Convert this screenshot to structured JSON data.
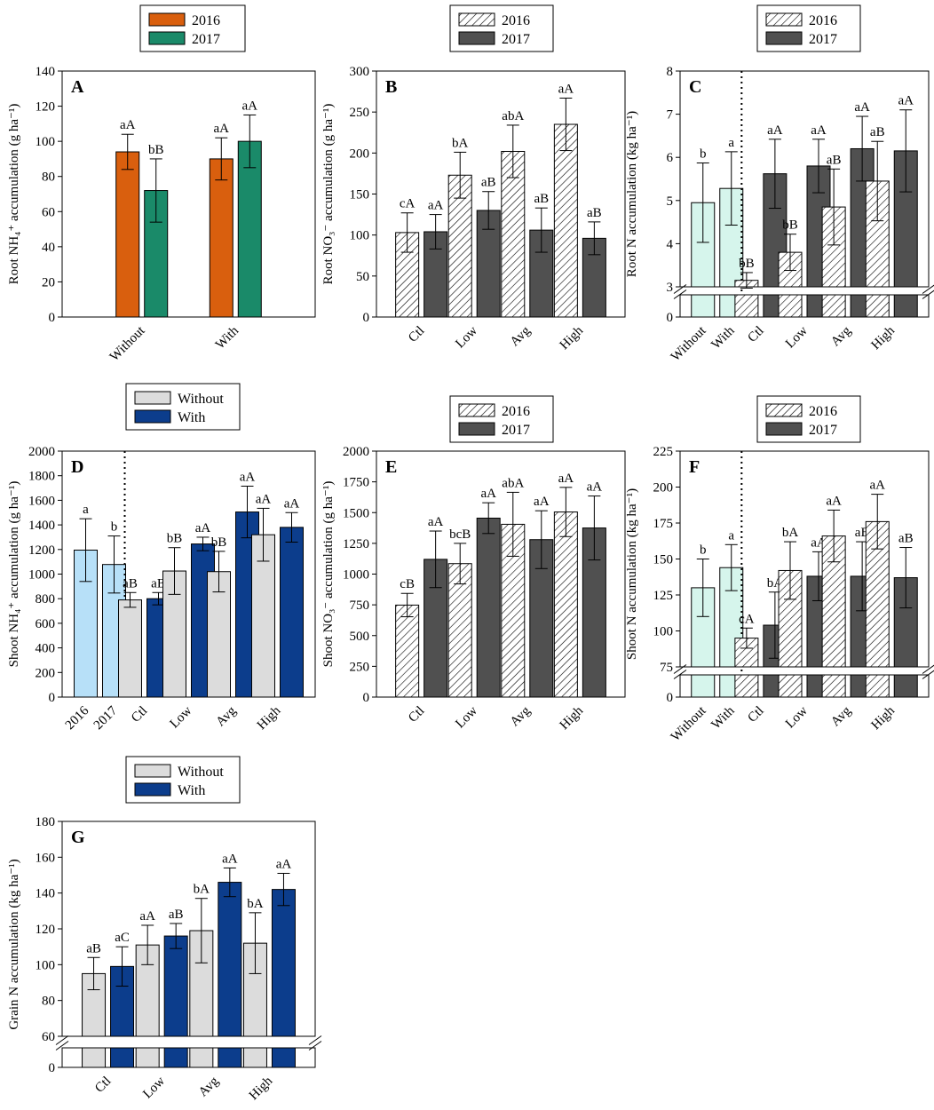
{
  "colors": {
    "orange": "#D95F0E",
    "teal": "#1A8A69",
    "dark_gray": "#505050",
    "light_gray": "#DCDCDC",
    "navy": "#0C3D8C",
    "light_blue": "#B7E0F8",
    "mint": "#D6F5EC"
  },
  "chart_data": [
    {
      "panel": "A",
      "type": "bar",
      "ylabel": "Root NH₄⁺ accumulation (g ha⁻¹)",
      "ylim": [
        0,
        140
      ],
      "yticks": [
        0,
        20,
        40,
        60,
        80,
        100,
        120,
        140
      ],
      "legend": [
        {
          "label": "2016",
          "style": "orange"
        },
        {
          "label": "2017",
          "style": "teal"
        }
      ],
      "groups": [
        {
          "label": "Without",
          "bars": [
            {
              "series": "2016",
              "value": 94,
              "error": 10,
              "letter": "aA",
              "style": "orange"
            },
            {
              "series": "2017",
              "value": 72,
              "error": 18,
              "letter": "bB",
              "style": "teal"
            }
          ]
        },
        {
          "label": "With",
          "bars": [
            {
              "series": "2016",
              "value": 90,
              "error": 12,
              "letter": "aA",
              "style": "orange"
            },
            {
              "series": "2017",
              "value": 100,
              "error": 15,
              "letter": "aA",
              "style": "teal"
            }
          ]
        }
      ]
    },
    {
      "panel": "B",
      "type": "bar",
      "ylabel": "Root NO₃⁻ accumulation (g ha⁻¹)",
      "ylim": [
        0,
        300
      ],
      "yticks": [
        0,
        50,
        100,
        150,
        200,
        250,
        300
      ],
      "legend": [
        {
          "label": "2016",
          "style": "hatch"
        },
        {
          "label": "2017",
          "style": "dark"
        }
      ],
      "groups": [
        {
          "label": "Ctl",
          "bars": [
            {
              "series": "2016",
              "value": 103,
              "error": 24,
              "letter": "cA",
              "style": "hatch"
            },
            {
              "series": "2017",
              "value": 104,
              "error": 21,
              "letter": "aA",
              "style": "dark"
            }
          ]
        },
        {
          "label": "Low",
          "bars": [
            {
              "series": "2016",
              "value": 173,
              "error": 28,
              "letter": "bA",
              "style": "hatch"
            },
            {
              "series": "2017",
              "value": 130,
              "error": 23,
              "letter": "aB",
              "style": "dark"
            }
          ]
        },
        {
          "label": "Avg",
          "bars": [
            {
              "series": "2016",
              "value": 202,
              "error": 32,
              "letter": "abA",
              "style": "hatch"
            },
            {
              "series": "2017",
              "value": 106,
              "error": 27,
              "letter": "aB",
              "style": "dark"
            }
          ]
        },
        {
          "label": "High",
          "bars": [
            {
              "series": "2016",
              "value": 235,
              "error": 32,
              "letter": "aA",
              "style": "hatch"
            },
            {
              "series": "2017",
              "value": 96,
              "error": 20,
              "letter": "aB",
              "style": "dark"
            }
          ]
        }
      ]
    },
    {
      "panel": "C",
      "type": "bar",
      "broken_axis": true,
      "ylabel": "Root N accumulation (kg ha⁻¹)",
      "ylim": [
        3,
        8
      ],
      "yticks": [
        3,
        4,
        5,
        6,
        7,
        8
      ],
      "ytick_zero": 0,
      "legend": [
        {
          "label": "2016",
          "style": "hatch"
        },
        {
          "label": "2017",
          "style": "dark"
        }
      ],
      "split_after_group": 0,
      "groups": [
        {
          "label": "",
          "bars": [
            {
              "series": "Without",
              "label": "Without",
              "value": 4.95,
              "error": 0.92,
              "letter": "b",
              "style": "mint"
            },
            {
              "series": "With",
              "label": "With",
              "value": 5.28,
              "error": 0.85,
              "letter": "a",
              "style": "mint"
            }
          ]
        },
        {
          "label": "Ctl",
          "bars": [
            {
              "series": "2016",
              "value": 3.15,
              "error": 0.18,
              "letter": "bB",
              "style": "hatch"
            },
            {
              "series": "2017",
              "value": 5.62,
              "error": 0.8,
              "letter": "aA",
              "style": "dark"
            }
          ]
        },
        {
          "label": "Low",
          "bars": [
            {
              "series": "2016",
              "value": 3.8,
              "error": 0.42,
              "letter": "bB",
              "style": "hatch"
            },
            {
              "series": "2017",
              "value": 5.8,
              "error": 0.62,
              "letter": "aA",
              "style": "dark"
            }
          ]
        },
        {
          "label": "Avg",
          "bars": [
            {
              "series": "2016",
              "value": 4.85,
              "error": 0.88,
              "letter": "aB",
              "style": "hatch"
            },
            {
              "series": "2017",
              "value": 6.2,
              "error": 0.75,
              "letter": "aA",
              "style": "dark"
            }
          ]
        },
        {
          "label": "High",
          "bars": [
            {
              "series": "2016",
              "value": 5.45,
              "error": 0.92,
              "letter": "aB",
              "style": "hatch"
            },
            {
              "series": "2017",
              "value": 6.15,
              "error": 0.95,
              "letter": "aA",
              "style": "dark"
            }
          ]
        }
      ]
    },
    {
      "panel": "D",
      "type": "bar",
      "ylabel": "Shoot NH₄⁺ accumulation (g ha⁻¹)",
      "ylim": [
        0,
        2000
      ],
      "yticks": [
        0,
        200,
        400,
        600,
        800,
        1000,
        1200,
        1400,
        1600,
        1800,
        2000
      ],
      "legend": [
        {
          "label": "Without",
          "style": "light"
        },
        {
          "label": "With",
          "style": "navy"
        }
      ],
      "split_after_group": 0,
      "groups": [
        {
          "label": "",
          "bars": [
            {
              "series": "2016",
              "label": "2016",
              "value": 1195,
              "error": 255,
              "letter": "a",
              "style": "lightblue"
            },
            {
              "series": "2017",
              "label": "2017",
              "value": 1078,
              "error": 232,
              "letter": "b",
              "style": "lightblue"
            }
          ]
        },
        {
          "label": "Ctl",
          "bars": [
            {
              "series": "Without",
              "value": 790,
              "error": 60,
              "letter": "aB",
              "style": "light"
            },
            {
              "series": "With",
              "value": 800,
              "error": 50,
              "letter": "aB",
              "style": "navy"
            }
          ]
        },
        {
          "label": "Low",
          "bars": [
            {
              "series": "Without",
              "value": 1025,
              "error": 190,
              "letter": "bB",
              "style": "light"
            },
            {
              "series": "With",
              "value": 1245,
              "error": 55,
              "letter": "aA",
              "style": "navy"
            }
          ]
        },
        {
          "label": "Avg",
          "bars": [
            {
              "series": "Without",
              "value": 1020,
              "error": 165,
              "letter": "bB",
              "style": "light"
            },
            {
              "series": "With",
              "value": 1505,
              "error": 210,
              "letter": "aA",
              "style": "navy"
            }
          ]
        },
        {
          "label": "High",
          "bars": [
            {
              "series": "Without",
              "value": 1320,
              "error": 215,
              "letter": "aA",
              "style": "light"
            },
            {
              "series": "With",
              "value": 1380,
              "error": 120,
              "letter": "aA",
              "style": "navy"
            }
          ]
        }
      ]
    },
    {
      "panel": "E",
      "type": "bar",
      "ylabel": "Shoot NO₃⁻ accumulation (g ha⁻¹)",
      "ylim": [
        0,
        2000
      ],
      "yticks": [
        0,
        250,
        500,
        750,
        1000,
        1250,
        1500,
        1750,
        2000
      ],
      "legend": [
        {
          "label": "2016",
          "style": "hatch"
        },
        {
          "label": "2017",
          "style": "dark"
        }
      ],
      "groups": [
        {
          "label": "Ctl",
          "bars": [
            {
              "series": "2016",
              "value": 748,
              "error": 95,
              "letter": "cB",
              "style": "hatch"
            },
            {
              "series": "2017",
              "value": 1120,
              "error": 230,
              "letter": "aA",
              "style": "dark"
            }
          ]
        },
        {
          "label": "Low",
          "bars": [
            {
              "series": "2016",
              "value": 1085,
              "error": 165,
              "letter": "bcB",
              "style": "hatch"
            },
            {
              "series": "2017",
              "value": 1455,
              "error": 125,
              "letter": "aA",
              "style": "dark"
            }
          ]
        },
        {
          "label": "Avg",
          "bars": [
            {
              "series": "2016",
              "value": 1405,
              "error": 260,
              "letter": "abA",
              "style": "hatch"
            },
            {
              "series": "2017",
              "value": 1280,
              "error": 235,
              "letter": "aA",
              "style": "dark"
            }
          ]
        },
        {
          "label": "High",
          "bars": [
            {
              "series": "2016",
              "value": 1505,
              "error": 200,
              "letter": "aA",
              "style": "hatch"
            },
            {
              "series": "2017",
              "value": 1375,
              "error": 260,
              "letter": "aA",
              "style": "dark"
            }
          ]
        }
      ]
    },
    {
      "panel": "F",
      "type": "bar",
      "broken_axis": true,
      "ylabel": "Shoot N accumulation (kg ha⁻¹)",
      "ylim": [
        75,
        225
      ],
      "yticks": [
        75,
        100,
        125,
        150,
        175,
        200,
        225
      ],
      "ytick_zero": 0,
      "legend": [
        {
          "label": "2016",
          "style": "hatch"
        },
        {
          "label": "2017",
          "style": "dark"
        }
      ],
      "split_after_group": 0,
      "groups": [
        {
          "label": "",
          "bars": [
            {
              "series": "Without",
              "label": "Without",
              "value": 130,
              "error": 20,
              "letter": "b",
              "style": "mint"
            },
            {
              "series": "With",
              "label": "With",
              "value": 144,
              "error": 16,
              "letter": "a",
              "style": "mint"
            }
          ]
        },
        {
          "label": "Ctl",
          "bars": [
            {
              "series": "2016",
              "value": 95,
              "error": 7,
              "letter": "cA",
              "style": "hatch"
            },
            {
              "series": "2017",
              "value": 104,
              "error": 23,
              "letter": "bA",
              "style": "dark"
            }
          ]
        },
        {
          "label": "Low",
          "bars": [
            {
              "series": "2016",
              "value": 142,
              "error": 20,
              "letter": "bA",
              "style": "hatch"
            },
            {
              "series": "2017",
              "value": 138,
              "error": 17,
              "letter": "aA",
              "style": "dark"
            }
          ]
        },
        {
          "label": "Avg",
          "bars": [
            {
              "series": "2016",
              "value": 166,
              "error": 18,
              "letter": "aA",
              "style": "hatch"
            },
            {
              "series": "2017",
              "value": 138,
              "error": 24,
              "letter": "aB",
              "style": "dark"
            }
          ]
        },
        {
          "label": "High",
          "bars": [
            {
              "series": "2016",
              "value": 176,
              "error": 19,
              "letter": "aA",
              "style": "hatch"
            },
            {
              "series": "2017",
              "value": 137,
              "error": 21,
              "letter": "aB",
              "style": "dark"
            }
          ]
        }
      ]
    },
    {
      "panel": "G",
      "type": "bar",
      "broken_axis": true,
      "ylabel": "Grain N accumulation (kg ha⁻¹)",
      "ylim": [
        60,
        180
      ],
      "yticks": [
        60,
        80,
        100,
        120,
        140,
        160,
        180
      ],
      "ytick_zero": 0,
      "legend": [
        {
          "label": "Without",
          "style": "light"
        },
        {
          "label": "With",
          "style": "navy"
        }
      ],
      "groups": [
        {
          "label": "Ctl",
          "bars": [
            {
              "series": "Without",
              "value": 95,
              "error": 9,
              "letter": "aB",
              "style": "light"
            },
            {
              "series": "With",
              "value": 99,
              "error": 11,
              "letter": "aC",
              "style": "navy"
            }
          ]
        },
        {
          "label": "Low",
          "bars": [
            {
              "series": "Without",
              "value": 111,
              "error": 11,
              "letter": "aA",
              "style": "light"
            },
            {
              "series": "With",
              "value": 116,
              "error": 7,
              "letter": "aB",
              "style": "navy"
            }
          ]
        },
        {
          "label": "Avg",
          "bars": [
            {
              "series": "Without",
              "value": 119,
              "error": 18,
              "letter": "bA",
              "style": "light"
            },
            {
              "series": "With",
              "value": 146,
              "error": 8,
              "letter": "aA",
              "style": "navy"
            }
          ]
        },
        {
          "label": "High",
          "bars": [
            {
              "series": "Without",
              "value": 112,
              "error": 17,
              "letter": "bA",
              "style": "light"
            },
            {
              "series": "With",
              "value": 142,
              "error": 9,
              "letter": "aA",
              "style": "navy"
            }
          ]
        }
      ]
    }
  ]
}
